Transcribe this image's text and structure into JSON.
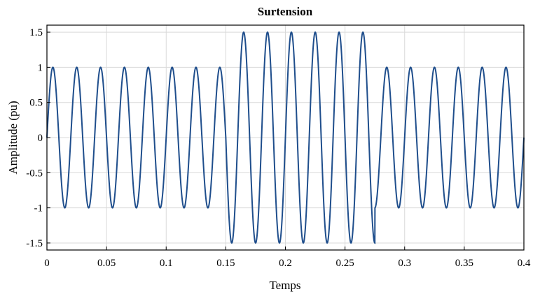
{
  "chart_data": {
    "type": "line",
    "title": "Surtension",
    "xlabel": "Temps",
    "ylabel": "Amplitude (pu)",
    "xlim": [
      0,
      0.4
    ],
    "ylim": [
      -1.6,
      1.6
    ],
    "grid": true,
    "legend": "none",
    "xticks": [
      0,
      0.05,
      0.1,
      0.15,
      0.2,
      0.25,
      0.3,
      0.35,
      0.4
    ],
    "xtick_labels": [
      "0",
      "0.05",
      "0.1",
      "0.15",
      "0.2",
      "0.25",
      "0.3",
      "0.35",
      "0.4"
    ],
    "yticks": [
      -1.5,
      -1,
      -0.5,
      0,
      0.5,
      1,
      1.5
    ],
    "ytick_labels": [
      "-1.5",
      "-1",
      "-0.5",
      "0",
      "0.5",
      "1",
      "1.5"
    ],
    "series": [
      {
        "frequency_hz": 50,
        "segments": [
          {
            "t_start": 0,
            "t_end": 0.15,
            "amplitude": 1.0
          },
          {
            "t_start": 0.15,
            "t_end": 0.275,
            "amplitude": 1.5
          },
          {
            "t_start": 0.275,
            "t_end": 0.4,
            "amplitude": 1.0
          }
        ]
      }
    ],
    "colors": {
      "line": "#1f4e8c",
      "grid": "#d9d9d9",
      "axes": "#000000"
    }
  }
}
